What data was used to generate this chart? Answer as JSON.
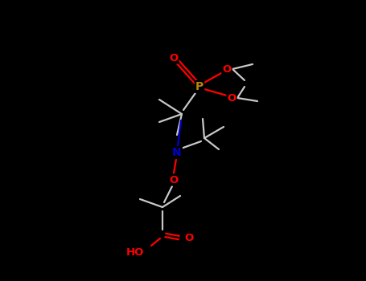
{
  "background_color": "#000000",
  "bond_color": "#c8c8c8",
  "atom_colors": {
    "O": "#ff0000",
    "N": "#0000cd",
    "P": "#b8860b",
    "C": "#c8c8c8",
    "H": "#c8c8c8"
  },
  "title": "",
  "figsize": [
    4.55,
    3.5
  ],
  "dpi": 100,
  "scale": 1.0
}
